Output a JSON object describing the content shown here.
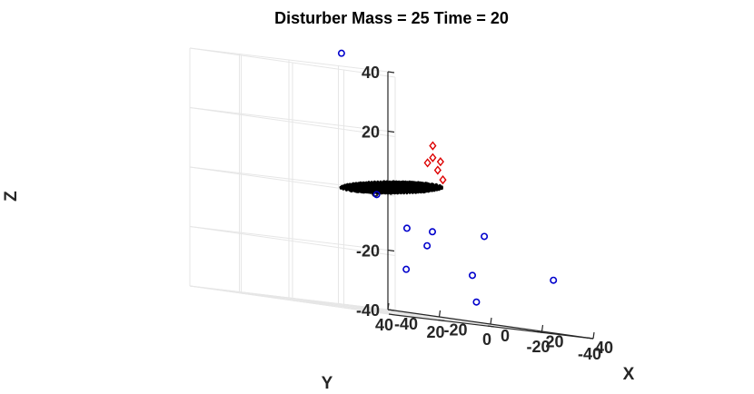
{
  "chart_data": {
    "type": "scatter",
    "title": "Disturber Mass = 25   Time = 20",
    "xlabel": "X",
    "ylabel": "Y",
    "zlabel": "Z",
    "x_ticks": [
      "-40",
      "-20",
      "0",
      "20",
      "40"
    ],
    "y_ticks": [
      "40",
      "20",
      "0",
      "-20",
      "-40"
    ],
    "z_ticks": [
      "40",
      "20",
      "0",
      "-20",
      "-40"
    ],
    "xlim": [
      -40,
      40
    ],
    "ylim": [
      -40,
      40
    ],
    "zlim": [
      -40,
      40
    ],
    "grid": true,
    "colors": {
      "disc": "#000000",
      "circles": "#0000cc",
      "diamonds": "#dd0000",
      "grid": "#e6e6e6",
      "axis": "#262626"
    },
    "series": [
      {
        "marker": "disc",
        "points_note": "dense ring of particles near z=0",
        "center_z": 2,
        "radius": 9
      },
      {
        "marker": "circle",
        "points": [
          {
            "x": -14,
            "y": 6,
            "z": 45
          },
          {
            "x": -6,
            "y": 0,
            "z": -1
          },
          {
            "x": 0,
            "y": -6,
            "z": -11
          },
          {
            "x": 2,
            "y": -14,
            "z": -11
          },
          {
            "x": 4,
            "y": -10,
            "z": -16
          },
          {
            "x": 8,
            "y": 2,
            "z": -25
          },
          {
            "x": -4,
            "y": -40,
            "z": -10
          },
          {
            "x": 14,
            "y": -18,
            "z": -24
          },
          {
            "x": 26,
            "y": -8,
            "z": -33
          },
          {
            "x": 26,
            "y": -38,
            "z": -22
          }
        ]
      },
      {
        "marker": "diamond",
        "points": [
          {
            "x": -2,
            "y": -18,
            "z": 18
          },
          {
            "x": -2,
            "y": -18,
            "z": 14
          },
          {
            "x": -1,
            "y": -15,
            "z": 12
          },
          {
            "x": -2,
            "y": -21,
            "z": 13
          },
          {
            "x": 0,
            "y": -18,
            "z": 10
          },
          {
            "x": 0,
            "y": -20,
            "z": 7
          }
        ]
      }
    ]
  }
}
